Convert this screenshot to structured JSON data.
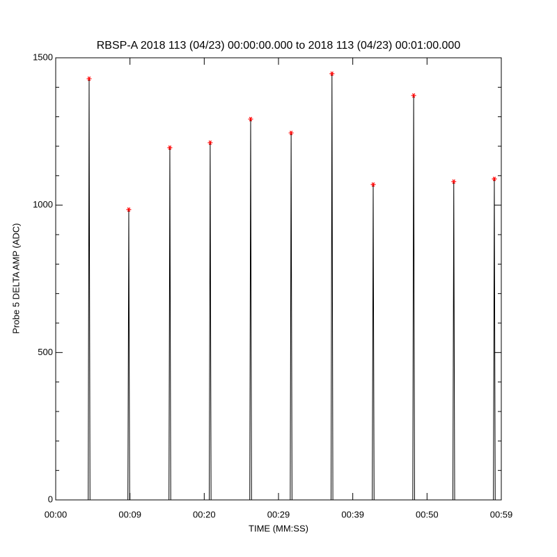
{
  "chart_data": {
    "type": "line",
    "title": "RBSP-A 2018 113 (04/23) 00:00:00.000 to 2018 113 (04/23) 00:01:00.000",
    "x_label": "TIME (MM:SS)",
    "y_label": "Probe 5 DELTA AMP (ADC)",
    "xlim": [
      0,
      60
    ],
    "xticks": [
      {
        "value": 0,
        "label": "00:00"
      },
      {
        "value": 10,
        "label": "00:09"
      },
      {
        "value": 20,
        "label": "00:20"
      },
      {
        "value": 30,
        "label": "00:29"
      },
      {
        "value": 40,
        "label": "00:39"
      },
      {
        "value": 50,
        "label": "00:50"
      },
      {
        "value": 60,
        "label": "00:59"
      }
    ],
    "ylim": [
      0,
      1500
    ],
    "yticks": [
      0,
      500,
      1000,
      1500
    ],
    "yminor": 5,
    "series": [
      {
        "color": "#000000",
        "x": [
          0,
          4.38,
          4.5,
          4.62,
          9.72,
          9.84,
          9.96,
          15.25,
          15.37,
          15.49,
          20.68,
          20.8,
          20.92,
          26.13,
          26.25,
          26.37,
          31.58,
          31.7,
          31.82,
          37.08,
          37.2,
          37.32,
          42.63,
          42.75,
          42.87,
          48.08,
          48.2,
          48.32,
          53.48,
          53.6,
          53.72,
          58.94,
          59.06,
          59.18
        ],
        "values": [
          0,
          0,
          1429,
          0,
          0,
          985,
          0,
          0,
          1195,
          0,
          0,
          1212,
          0,
          0,
          1292,
          0,
          0,
          1245,
          0,
          0,
          1446,
          0,
          0,
          1070,
          0,
          0,
          1372,
          0,
          0,
          1080,
          0,
          0,
          1089,
          0
        ]
      },
      {
        "color": "#ff0000",
        "marker": "asterisk",
        "x": [
          4.5,
          9.84,
          15.37,
          20.8,
          26.25,
          31.7,
          37.2,
          42.75,
          48.2,
          53.6,
          59.06
        ],
        "values": [
          1429,
          985,
          1195,
          1212,
          1292,
          1245,
          1446,
          1070,
          1372,
          1080,
          1089
        ]
      }
    ]
  }
}
